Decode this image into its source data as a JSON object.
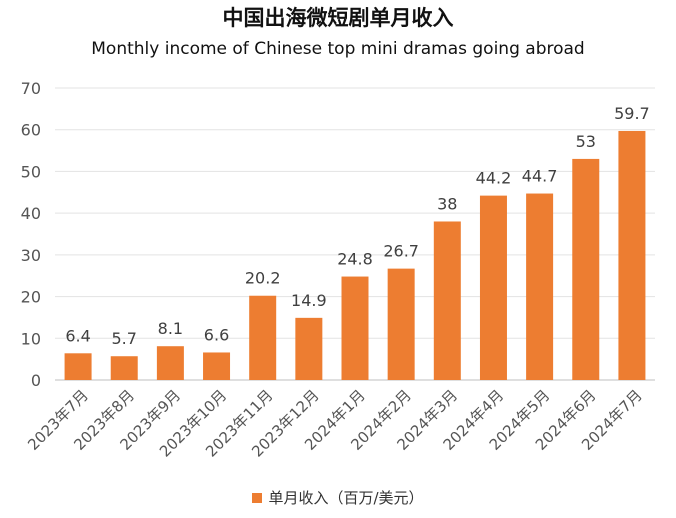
{
  "chart_data": {
    "type": "bar",
    "title": "中国出海微短剧单月收入",
    "subtitle": "Monthly income of Chinese top mini dramas going abroad",
    "categories": [
      "2023年7月",
      "2023年8月",
      "2023年9月",
      "2023年10月",
      "2023年11月",
      "2023年12月",
      "2024年1月",
      "2024年2月",
      "2024年3月",
      "2024年4月",
      "2024年5月",
      "2024年6月",
      "2024年7月"
    ],
    "series": [
      {
        "name": "单月收入（百万/美元）",
        "values": [
          6.4,
          5.7,
          8.1,
          6.6,
          20.2,
          14.9,
          24.8,
          26.7,
          38,
          44.2,
          44.7,
          53,
          59.7
        ],
        "labels": [
          "6.4",
          "5.7",
          "8.1",
          "6.6",
          "20.2",
          "14.9",
          "24.8",
          "26.7",
          "38",
          "44.2",
          "44.7",
          "53",
          "59.7"
        ],
        "color": "#ED7D31"
      }
    ],
    "ylim": [
      0,
      70
    ],
    "yticks": [
      "0",
      "10",
      "20",
      "30",
      "40",
      "50",
      "60",
      "70"
    ],
    "grid": true,
    "legend_position": "bottom"
  }
}
